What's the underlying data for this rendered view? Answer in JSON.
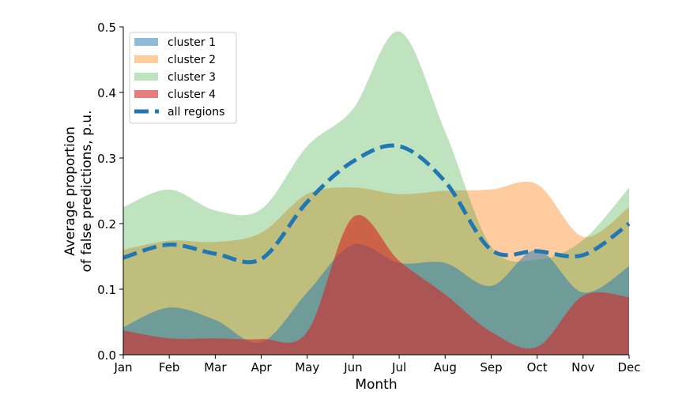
{
  "chart_data": {
    "type": "area",
    "title": "",
    "xlabel": "Month",
    "ylabel_lines": [
      "Average proportion",
      "of false predictions, p.u."
    ],
    "categories": [
      "Jan",
      "Feb",
      "Mar",
      "Apr",
      "May",
      "Jun",
      "Jul",
      "Aug",
      "Sep",
      "Oct",
      "Nov",
      "Dec"
    ],
    "ylim": [
      0.0,
      0.5
    ],
    "yticks": [
      "0.0",
      "0.1",
      "0.2",
      "0.3",
      "0.4",
      "0.5"
    ],
    "ytick_values": [
      0.0,
      0.1,
      0.2,
      0.3,
      0.4,
      0.5
    ],
    "grid": false,
    "legend_position": "upper-left",
    "series": [
      {
        "name": "cluster 1",
        "kind": "fill",
        "color": "#1f77b4",
        "opacity": 0.5,
        "values": [
          0.042,
          0.072,
          0.053,
          0.019,
          0.095,
          0.168,
          0.14,
          0.14,
          0.105,
          0.16,
          0.095,
          0.135
        ]
      },
      {
        "name": "cluster 2",
        "kind": "fill",
        "color": "#ff7f0e",
        "opacity": 0.4,
        "values": [
          0.16,
          0.174,
          0.172,
          0.186,
          0.245,
          0.255,
          0.245,
          0.25,
          0.252,
          0.26,
          0.18,
          0.225
        ]
      },
      {
        "name": "cluster 3",
        "kind": "fill",
        "color": "#2ca02c",
        "opacity": 0.3,
        "values": [
          0.225,
          0.252,
          0.22,
          0.222,
          0.318,
          0.375,
          0.493,
          0.34,
          0.165,
          0.145,
          0.175,
          0.255
        ]
      },
      {
        "name": "cluster 4",
        "kind": "fill",
        "color": "#d62728",
        "opacity": 0.6,
        "values": [
          0.037,
          0.025,
          0.025,
          0.024,
          0.035,
          0.21,
          0.143,
          0.092,
          0.035,
          0.012,
          0.09,
          0.088
        ]
      },
      {
        "name": "all regions",
        "kind": "dashed-line",
        "color": "#1f77b4",
        "opacity": 1.0,
        "values": [
          0.148,
          0.168,
          0.154,
          0.146,
          0.233,
          0.295,
          0.318,
          0.264,
          0.16,
          0.158,
          0.152,
          0.2
        ]
      }
    ]
  }
}
